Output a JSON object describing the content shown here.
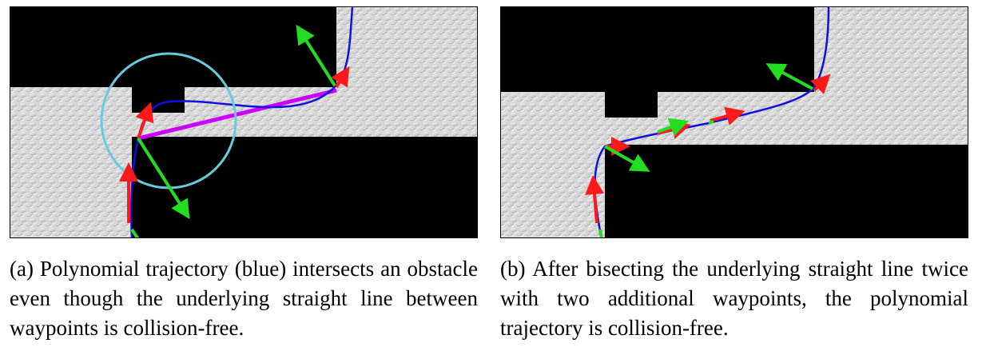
{
  "figure": {
    "panels": [
      {
        "id": "a",
        "caption": "(a) Polynomial trajectory (blue) intersects an obstacle even though the underlying straight line between waypoints is collision-free.",
        "colors": {
          "trajectory": "#1010e0",
          "straight_line": "#cc00ff",
          "circle": "#66ccdd",
          "velocity_arrow": "#ff1a1a",
          "normal_arrow": "#22dd22",
          "obstacle": "#000000",
          "free_space": "#d9d9d9"
        }
      },
      {
        "id": "b",
        "caption": "(b) After bisecting the underlying straight line twice with two additional waypoints, the polynomial trajectory is collision-free.",
        "colors": {
          "trajectory": "#1010e0",
          "velocity_arrow": "#ff1a1a",
          "normal_arrow": "#22dd22",
          "obstacle": "#000000",
          "free_space": "#d9d9d9"
        }
      }
    ]
  }
}
